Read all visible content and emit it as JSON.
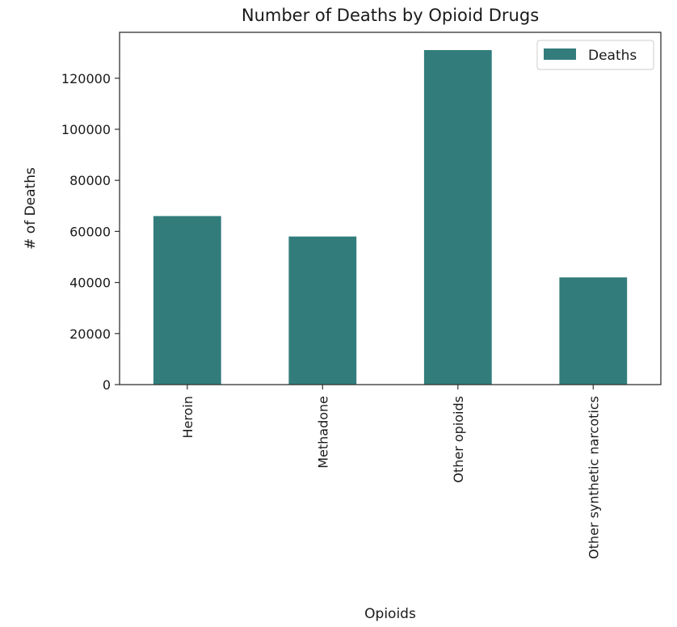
{
  "chart_data": {
    "type": "bar",
    "title": "Number of Deaths by Opioid Drugs",
    "xlabel": "Opioids",
    "ylabel": "# of Deaths",
    "categories": [
      "Heroin",
      "Methadone",
      "Other opioids",
      "Other synthetic narcotics"
    ],
    "series": [
      {
        "name": "Deaths",
        "values": [
          66000,
          58000,
          131000,
          42000
        ],
        "color": "#327d7c"
      }
    ],
    "ylim": [
      0,
      138000
    ],
    "yticks": [
      0,
      20000,
      40000,
      60000,
      80000,
      100000,
      120000
    ],
    "ytick_labels": [
      "0",
      "20000",
      "40000",
      "60000",
      "80000",
      "100000",
      "120000"
    ],
    "grid": false,
    "legend": {
      "position": "top-right",
      "entries": [
        "Deaths"
      ]
    }
  }
}
